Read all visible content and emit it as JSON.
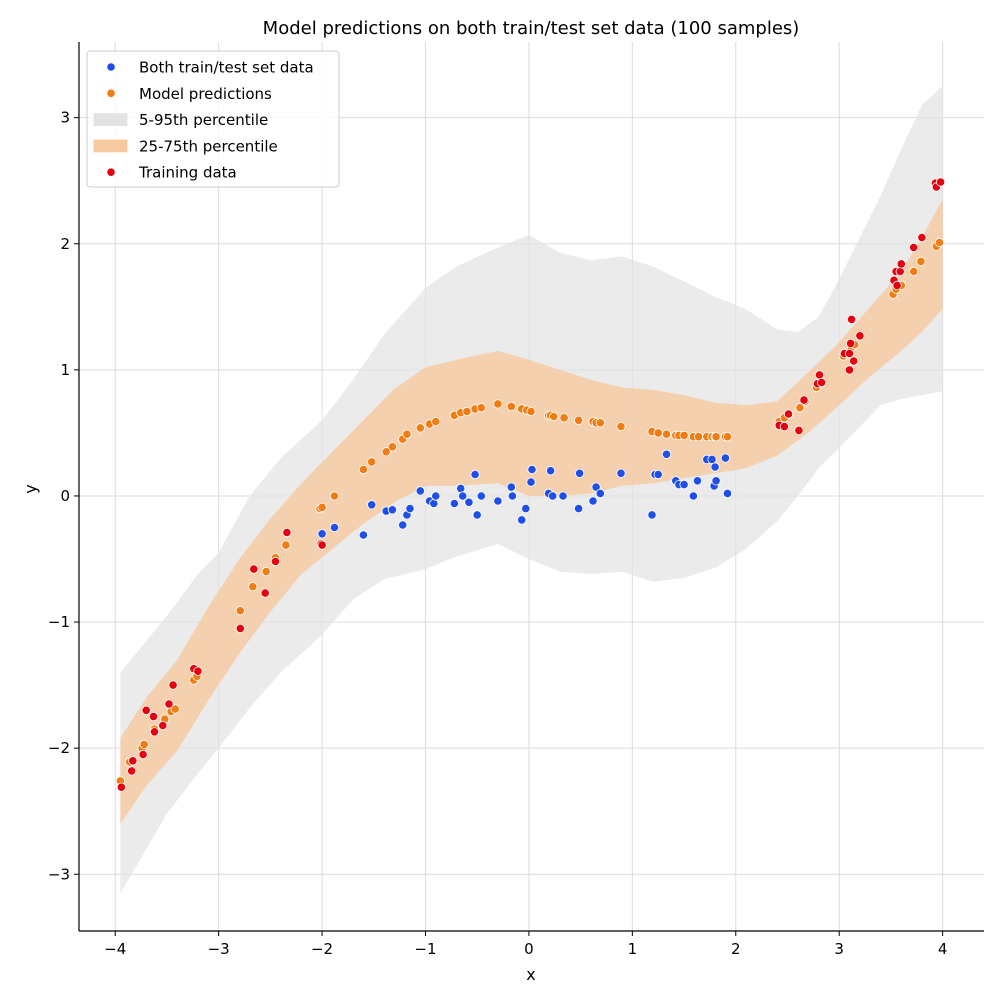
{
  "chart_data": {
    "type": "scatter",
    "title": "Model predictions on both train/test set data (100 samples)",
    "xlabel": "x",
    "ylabel": "y",
    "xlim": [
      -4.35,
      4.4
    ],
    "ylim": [
      -3.45,
      3.6
    ],
    "grid": true,
    "legend_position": "top-left",
    "xticks": [
      -4,
      -3,
      -2,
      -1,
      0,
      1,
      2,
      3,
      4
    ],
    "yticks": [
      -3,
      -2,
      -1,
      0,
      1,
      2,
      3
    ],
    "xtick_labels": [
      "−4",
      "−3",
      "−2",
      "−1",
      "0",
      "1",
      "2",
      "3",
      "4"
    ],
    "ytick_labels": [
      "−3",
      "−2",
      "−1",
      "0",
      "1",
      "2",
      "3"
    ],
    "colors": {
      "both": "#1f4fe8",
      "pred": "#f07c12",
      "band595": "#e2e2e2",
      "band2575": "#f6c9a0",
      "train": "#e6000f"
    },
    "legend": [
      {
        "label": "Both train/test set data",
        "kind": "point",
        "color": "#1f4fe8"
      },
      {
        "label": "Model predictions",
        "kind": "point",
        "color": "#f07c12"
      },
      {
        "label": "5-95th percentile",
        "kind": "band",
        "color": "#e2e2e2"
      },
      {
        "label": "25-75th percentile",
        "kind": "band",
        "color": "#f6c9a0"
      },
      {
        "label": "Training data",
        "kind": "point",
        "color": "#e6000f"
      }
    ],
    "band_5_95": {
      "x": [
        -3.95,
        -3.7,
        -3.5,
        -3.2,
        -3.0,
        -2.7,
        -2.4,
        -2.0,
        -1.7,
        -1.4,
        -1.0,
        -0.7,
        -0.3,
        0.0,
        0.3,
        0.6,
        0.9,
        1.2,
        1.5,
        1.8,
        2.1,
        2.4,
        2.6,
        2.8,
        3.0,
        3.2,
        3.4,
        3.6,
        3.8,
        4.0
      ],
      "upper": [
        -1.4,
        -1.15,
        -0.95,
        -0.62,
        -0.45,
        0.0,
        0.3,
        0.6,
        0.92,
        1.28,
        1.65,
        1.82,
        1.97,
        2.07,
        1.93,
        1.87,
        1.9,
        1.82,
        1.7,
        1.58,
        1.48,
        1.32,
        1.3,
        1.42,
        1.72,
        2.05,
        2.38,
        2.75,
        3.1,
        3.25
      ],
      "lower": [
        -3.15,
        -2.8,
        -2.52,
        -2.2,
        -2.0,
        -1.68,
        -1.4,
        -1.1,
        -0.82,
        -0.66,
        -0.58,
        -0.48,
        -0.38,
        -0.5,
        -0.6,
        -0.62,
        -0.6,
        -0.68,
        -0.65,
        -0.57,
        -0.42,
        -0.2,
        0.0,
        0.22,
        0.38,
        0.55,
        0.72,
        0.77,
        0.8,
        0.83
      ]
    },
    "band_25_75": {
      "x": [
        -3.95,
        -3.7,
        -3.4,
        -3.1,
        -2.8,
        -2.5,
        -2.2,
        -1.9,
        -1.6,
        -1.3,
        -1.0,
        -0.7,
        -0.3,
        0.0,
        0.3,
        0.6,
        0.9,
        1.2,
        1.5,
        1.8,
        2.1,
        2.4,
        2.7,
        3.0,
        3.3,
        3.6,
        3.8,
        4.0
      ],
      "upper": [
        -1.92,
        -1.6,
        -1.3,
        -0.88,
        -0.5,
        -0.18,
        0.1,
        0.35,
        0.6,
        0.85,
        1.02,
        1.08,
        1.15,
        1.08,
        1.0,
        0.92,
        0.86,
        0.84,
        0.8,
        0.74,
        0.72,
        0.75,
        0.98,
        1.22,
        1.5,
        1.78,
        2.05,
        2.35
      ],
      "lower": [
        -2.6,
        -2.3,
        -2.02,
        -1.62,
        -1.25,
        -0.92,
        -0.62,
        -0.42,
        -0.22,
        -0.05,
        0.08,
        0.08,
        0.1,
        0.0,
        0.0,
        0.02,
        0.08,
        0.1,
        0.14,
        0.18,
        0.22,
        0.32,
        0.5,
        0.72,
        0.95,
        1.15,
        1.3,
        1.48
      ]
    },
    "series": [
      {
        "name": "Both train/test set data",
        "color": "#1f4fe8",
        "x": [
          -2.0,
          -1.88,
          -1.6,
          -1.52,
          -1.38,
          -1.32,
          -1.22,
          -1.18,
          -1.15,
          -1.05,
          -0.96,
          -0.92,
          -0.9,
          -0.72,
          -0.66,
          -0.64,
          -0.58,
          -0.52,
          -0.5,
          -0.46,
          -0.3,
          -0.17,
          -0.16,
          -0.07,
          -0.03,
          0.02,
          0.03,
          0.19,
          0.21,
          0.23,
          0.33,
          0.48,
          0.49,
          0.62,
          0.65,
          0.69,
          0.89,
          1.19,
          1.22,
          1.25,
          1.33,
          1.42,
          1.45,
          1.5,
          1.59,
          1.63,
          1.72,
          1.77,
          1.79,
          1.8,
          1.81,
          1.9,
          1.92
        ],
        "y": [
          -0.3,
          -0.25,
          -0.31,
          -0.07,
          -0.12,
          -0.11,
          -0.23,
          -0.15,
          -0.1,
          0.04,
          -0.04,
          -0.06,
          0.0,
          -0.06,
          0.06,
          0.0,
          -0.05,
          0.17,
          -0.15,
          0.0,
          -0.04,
          0.07,
          0.0,
          -0.19,
          -0.1,
          0.11,
          0.21,
          0.02,
          0.2,
          0.0,
          0.0,
          -0.1,
          0.18,
          -0.04,
          0.07,
          0.02,
          0.18,
          -0.15,
          0.17,
          0.17,
          0.33,
          0.12,
          0.09,
          0.09,
          0.0,
          0.12,
          0.29,
          0.29,
          0.08,
          0.23,
          0.12,
          0.3,
          0.02
        ]
      },
      {
        "name": "Model predictions",
        "color": "#f07c12",
        "x": [
          -3.95,
          -3.86,
          -3.74,
          -3.72,
          -3.62,
          -3.52,
          -3.46,
          -3.42,
          -3.24,
          -3.21,
          -2.79,
          -2.67,
          -2.54,
          -2.45,
          -2.35,
          -2.02,
          -2.0,
          -1.88,
          -1.6,
          -1.52,
          -1.38,
          -1.32,
          -1.22,
          -1.18,
          -1.05,
          -0.96,
          -0.9,
          -0.72,
          -0.66,
          -0.6,
          -0.52,
          -0.46,
          -0.3,
          -0.17,
          -0.07,
          -0.02,
          0.02,
          0.19,
          0.21,
          0.24,
          0.34,
          0.48,
          0.62,
          0.65,
          0.69,
          0.89,
          1.19,
          1.25,
          1.33,
          1.42,
          1.45,
          1.5,
          1.59,
          1.64,
          1.72,
          1.77,
          1.8,
          1.81,
          1.9,
          1.92,
          2.42,
          2.47,
          2.52,
          2.62,
          2.67,
          2.78,
          2.81,
          3.04,
          3.1,
          3.12,
          3.15,
          3.52,
          3.55,
          3.6,
          3.72,
          3.79,
          3.94,
          3.97
        ],
        "y": [
          -2.26,
          -2.11,
          -2.0,
          -1.97,
          -1.85,
          -1.77,
          -1.71,
          -1.69,
          -1.46,
          -1.43,
          -0.91,
          -0.72,
          -0.6,
          -0.49,
          -0.39,
          -0.1,
          -0.09,
          0.0,
          0.21,
          0.27,
          0.35,
          0.39,
          0.45,
          0.49,
          0.54,
          0.57,
          0.59,
          0.64,
          0.66,
          0.67,
          0.69,
          0.7,
          0.73,
          0.71,
          0.69,
          0.68,
          0.67,
          0.64,
          0.64,
          0.63,
          0.62,
          0.6,
          0.59,
          0.58,
          0.58,
          0.55,
          0.51,
          0.5,
          0.49,
          0.48,
          0.48,
          0.48,
          0.47,
          0.47,
          0.47,
          0.47,
          0.47,
          0.47,
          0.47,
          0.47,
          0.59,
          0.62,
          0.65,
          0.7,
          0.75,
          0.86,
          0.9,
          1.11,
          1.15,
          1.18,
          1.2,
          1.6,
          1.64,
          1.67,
          1.78,
          1.86,
          1.98,
          2.01
        ]
      },
      {
        "name": "Training data",
        "color": "#e6000f",
        "x": [
          -3.94,
          -3.84,
          -3.83,
          -3.73,
          -3.7,
          -3.63,
          -3.62,
          -3.54,
          -3.48,
          -3.44,
          -3.24,
          -3.2,
          -2.79,
          -2.66,
          -2.55,
          -2.45,
          -2.34,
          -2.01,
          -2.0,
          2.42,
          2.47,
          2.51,
          2.61,
          2.66,
          2.79,
          2.81,
          2.83,
          3.05,
          3.1,
          3.1,
          3.11,
          3.12,
          3.14,
          3.2,
          3.53,
          3.55,
          3.56,
          3.59,
          3.6,
          3.72,
          3.8,
          3.93,
          3.94,
          3.98
        ],
        "y": [
          -2.31,
          -2.18,
          -2.1,
          -2.05,
          -1.7,
          -1.75,
          -1.87,
          -1.82,
          -1.65,
          -1.5,
          -1.37,
          -1.39,
          -1.05,
          -0.58,
          -0.77,
          -0.52,
          -0.29,
          -0.38,
          -0.39,
          0.56,
          0.55,
          0.65,
          0.52,
          0.76,
          0.89,
          0.96,
          0.9,
          1.13,
          1.13,
          1.0,
          1.21,
          1.4,
          1.07,
          1.27,
          1.71,
          1.78,
          1.67,
          1.78,
          1.84,
          1.97,
          2.05,
          2.48,
          2.45,
          2.49
        ]
      }
    ]
  }
}
